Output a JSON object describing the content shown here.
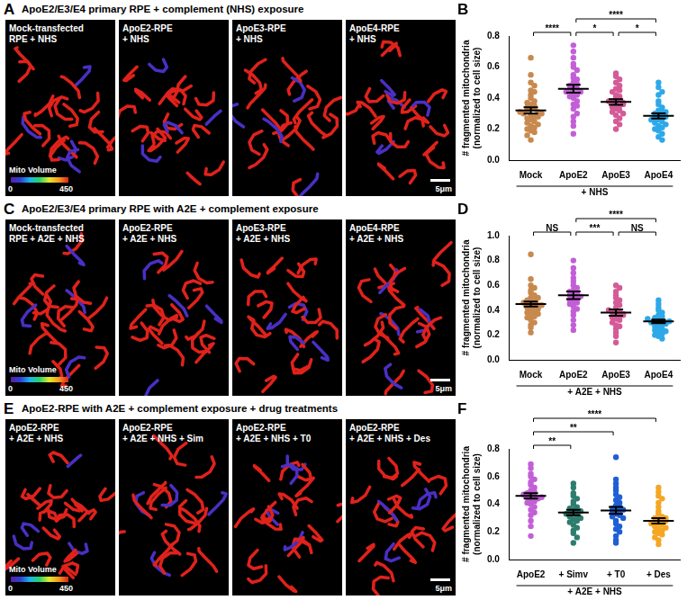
{
  "panels": [
    {
      "letter": "A",
      "title": "ApoE2/E3/E4 primary RPE + complement (NHS) exposure",
      "images": [
        [
          "Mock-transfected",
          "RPE + NHS"
        ],
        [
          "ApoE2-RPE",
          "+ NHS"
        ],
        [
          "ApoE3-RPE",
          "+ NHS"
        ],
        [
          "ApoE4-RPE",
          "+ NHS"
        ]
      ],
      "colorbar": {
        "title": "Mito Volume",
        "range": [
          0,
          450
        ]
      },
      "scale_bar": "5μm"
    },
    {
      "letter": "C",
      "title": "ApoE2/E3/E4 primary RPE with A2E + complement exposure",
      "images": [
        [
          "Mock-transfected",
          "RPE + A2E + NHS"
        ],
        [
          "ApoE2-RPE",
          "+ A2E + NHS"
        ],
        [
          "ApoE3-RPE",
          "+ A2E + NHS"
        ],
        [
          "ApoE4-RPE",
          "+ A2E + NHS"
        ]
      ],
      "colorbar": {
        "title": "Mito Volume",
        "range": [
          0,
          450
        ]
      },
      "scale_bar": "5μm"
    },
    {
      "letter": "E",
      "title": "ApoE2-RPE with A2E + complement exposure + drug treatments",
      "images": [
        [
          "ApoE2-RPE",
          "+ A2E + NHS"
        ],
        [
          "ApoE2-RPE",
          "+ A2E + NHS + Sim"
        ],
        [
          "ApoE2-RPE",
          "+ A2E + NHS + T0"
        ],
        [
          "ApoE2-RPE",
          "+ A2E + NHS + Des"
        ]
      ],
      "colorbar": {
        "title": "Mito Volume",
        "range": [
          0,
          450
        ]
      },
      "scale_bar": "5μm"
    }
  ],
  "chart_data": [
    {
      "letter": "B",
      "type": "scatter",
      "categories": [
        "Mock",
        "ApoE2",
        "ApoE3",
        "ApoE4"
      ],
      "group_label": "+ NHS",
      "y_label": [
        "# fragmented mitochondria",
        "(normalized to cell size)"
      ],
      "ylim": [
        0,
        0.8
      ],
      "yticks": [
        {
          "value": 0,
          "label": "0.0"
        },
        0.2,
        0.4,
        0.6,
        0.8
      ],
      "colors": [
        "#c8894e",
        "#c35fd6",
        "#d45b97",
        "#2ea8e8"
      ],
      "values": [
        [
          0.66,
          0.55,
          0.5,
          0.48,
          0.45,
          0.44,
          0.42,
          0.4,
          0.38,
          0.37,
          0.36,
          0.35,
          0.34,
          0.33,
          0.33,
          0.32,
          0.31,
          0.3,
          0.3,
          0.29,
          0.28,
          0.27,
          0.26,
          0.25,
          0.24,
          0.23,
          0.22,
          0.21,
          0.2,
          0.19,
          0.18,
          0.16,
          0.13,
          0.28,
          0.31
        ],
        [
          0.74,
          0.7,
          0.66,
          0.62,
          0.6,
          0.58,
          0.55,
          0.53,
          0.52,
          0.5,
          0.49,
          0.48,
          0.47,
          0.46,
          0.45,
          0.44,
          0.43,
          0.42,
          0.41,
          0.4,
          0.38,
          0.36,
          0.35,
          0.33,
          0.3,
          0.28,
          0.25,
          0.22,
          0.17,
          0.44
        ],
        [
          0.56,
          0.54,
          0.52,
          0.5,
          0.48,
          0.46,
          0.45,
          0.44,
          0.42,
          0.41,
          0.4,
          0.39,
          0.38,
          0.37,
          0.36,
          0.35,
          0.34,
          0.33,
          0.32,
          0.31,
          0.3,
          0.29,
          0.27,
          0.25,
          0.23,
          0.2,
          0.36,
          0.38
        ],
        [
          0.5,
          0.47,
          0.44,
          0.42,
          0.38,
          0.36,
          0.34,
          0.32,
          0.31,
          0.3,
          0.29,
          0.28,
          0.27,
          0.26,
          0.25,
          0.24,
          0.23,
          0.22,
          0.21,
          0.2,
          0.19,
          0.17,
          0.15,
          0.13,
          0.28,
          0.26,
          0.31
        ]
      ],
      "mean": [
        0.32,
        0.46,
        0.375,
        0.285
      ],
      "sem": [
        0.02,
        0.025,
        0.018,
        0.017
      ],
      "annotations": [
        {
          "from": "Mock",
          "to": "ApoE2",
          "label": "****"
        },
        {
          "from": "ApoE2",
          "to": "ApoE3",
          "label": "*"
        },
        {
          "from": "ApoE2",
          "to": "ApoE4",
          "label": "****"
        },
        {
          "from": "ApoE3",
          "to": "ApoE4",
          "label": "*"
        }
      ]
    },
    {
      "letter": "D",
      "type": "scatter",
      "categories": [
        "Mock",
        "ApoE2",
        "ApoE3",
        "ApoE4"
      ],
      "group_label": "+ A2E + NHS",
      "y_label": [
        "# fragmented mitochondria",
        "(normalized to cell size)"
      ],
      "ylim": [
        0,
        1
      ],
      "yticks": [
        {
          "value": 0,
          "label": "0.0"
        },
        0.2,
        0.4,
        0.6,
        0.8,
        {
          "value": 1,
          "label": "1.0"
        }
      ],
      "colors": [
        "#c8894e",
        "#c35fd6",
        "#d45b97",
        "#2ea8e8"
      ],
      "values": [
        [
          0.85,
          0.65,
          0.6,
          0.58,
          0.56,
          0.54,
          0.52,
          0.5,
          0.49,
          0.48,
          0.47,
          0.46,
          0.45,
          0.44,
          0.43,
          0.42,
          0.42,
          0.41,
          0.4,
          0.39,
          0.38,
          0.37,
          0.36,
          0.35,
          0.34,
          0.32,
          0.3,
          0.28,
          0.26,
          0.22,
          0.46,
          0.5,
          0.44
        ],
        [
          0.8,
          0.74,
          0.7,
          0.66,
          0.63,
          0.6,
          0.58,
          0.56,
          0.55,
          0.54,
          0.53,
          0.52,
          0.51,
          0.5,
          0.49,
          0.48,
          0.47,
          0.46,
          0.45,
          0.43,
          0.41,
          0.39,
          0.36,
          0.32,
          0.28,
          0.24,
          0.55
        ],
        [
          0.6,
          0.58,
          0.55,
          0.52,
          0.5,
          0.48,
          0.46,
          0.44,
          0.42,
          0.4,
          0.39,
          0.38,
          0.37,
          0.36,
          0.35,
          0.34,
          0.33,
          0.32,
          0.3,
          0.28,
          0.27,
          0.25,
          0.22,
          0.19,
          0.14,
          0.4,
          0.36
        ],
        [
          0.48,
          0.45,
          0.42,
          0.4,
          0.38,
          0.36,
          0.35,
          0.34,
          0.33,
          0.32,
          0.31,
          0.3,
          0.3,
          0.29,
          0.28,
          0.27,
          0.26,
          0.25,
          0.24,
          0.23,
          0.22,
          0.21,
          0.2,
          0.19,
          0.17,
          0.31,
          0.29,
          0.33
        ]
      ],
      "mean": [
        0.45,
        0.52,
        0.38,
        0.31
      ],
      "sem": [
        0.02,
        0.03,
        0.025,
        0.015
      ],
      "annotations": [
        {
          "from": "Mock",
          "to": "ApoE2",
          "label": "NS"
        },
        {
          "from": "ApoE2",
          "to": "ApoE3",
          "label": "***"
        },
        {
          "from": "ApoE2",
          "to": "ApoE4",
          "label": "****"
        },
        {
          "from": "ApoE3",
          "to": "ApoE4",
          "label": "NS"
        }
      ]
    },
    {
      "letter": "F",
      "type": "scatter",
      "categories": [
        "ApoE2",
        "+ Simv",
        "+ T0",
        "+ Des"
      ],
      "group_label": "+ A2E + NHS",
      "y_label": [
        "# fragmented mitochondria",
        "(normalized to cell size)"
      ],
      "ylim": [
        0,
        0.8
      ],
      "yticks": [
        {
          "value": 0,
          "label": "0.0"
        },
        0.2,
        0.4,
        0.6,
        0.8
      ],
      "colors": [
        "#c35fd6",
        "#2e7d6e",
        "#1f5fd6",
        "#f5a623"
      ],
      "values": [
        [
          0.69,
          0.66,
          0.62,
          0.6,
          0.58,
          0.56,
          0.54,
          0.52,
          0.5,
          0.49,
          0.48,
          0.47,
          0.46,
          0.45,
          0.44,
          0.43,
          0.42,
          0.41,
          0.4,
          0.38,
          0.36,
          0.34,
          0.32,
          0.28,
          0.24,
          0.17,
          0.47,
          0.45
        ],
        [
          0.55,
          0.52,
          0.48,
          0.46,
          0.44,
          0.42,
          0.4,
          0.38,
          0.37,
          0.36,
          0.35,
          0.34,
          0.33,
          0.32,
          0.31,
          0.3,
          0.29,
          0.28,
          0.27,
          0.25,
          0.23,
          0.21,
          0.19,
          0.16,
          0.12,
          0.35,
          0.33
        ],
        [
          0.74,
          0.58,
          0.55,
          0.52,
          0.5,
          0.47,
          0.45,
          0.43,
          0.41,
          0.39,
          0.38,
          0.37,
          0.36,
          0.35,
          0.34,
          0.33,
          0.32,
          0.31,
          0.3,
          0.28,
          0.26,
          0.24,
          0.22,
          0.2,
          0.17,
          0.14,
          0.12,
          0.36
        ],
        [
          0.52,
          0.49,
          0.46,
          0.44,
          0.41,
          0.38,
          0.35,
          0.33,
          0.31,
          0.3,
          0.29,
          0.28,
          0.27,
          0.26,
          0.25,
          0.24,
          0.23,
          0.22,
          0.21,
          0.2,
          0.19,
          0.18,
          0.16,
          0.14,
          0.11,
          0.28,
          0.26,
          0.3
        ]
      ],
      "mean": [
        0.46,
        0.34,
        0.355,
        0.28
      ],
      "sem": [
        0.02,
        0.02,
        0.025,
        0.02
      ],
      "annotations": [
        {
          "from": "ApoE2",
          "to": "+ Simv",
          "label": "**"
        },
        {
          "from": "ApoE2",
          "to": "+ T0",
          "label": "**"
        },
        {
          "from": "ApoE2",
          "to": "+ Des",
          "label": "****"
        }
      ]
    }
  ]
}
